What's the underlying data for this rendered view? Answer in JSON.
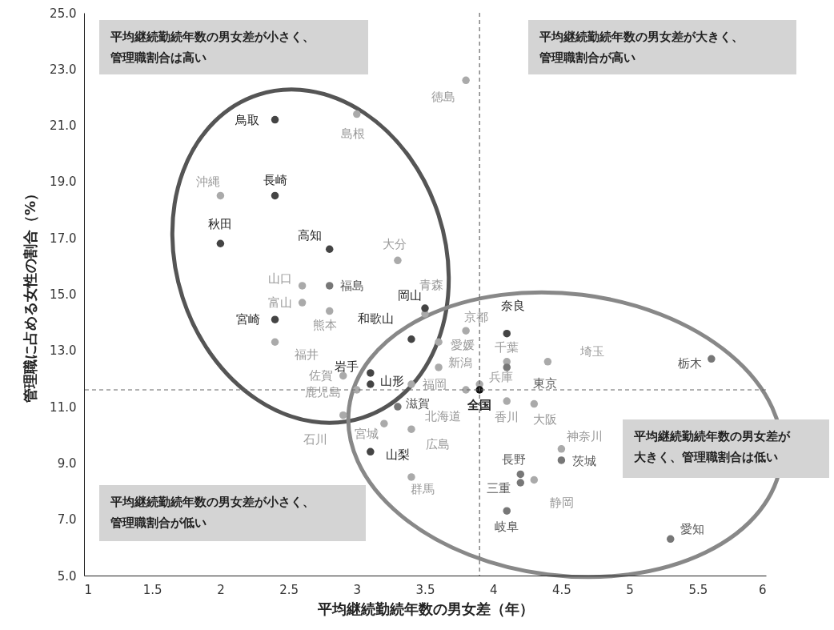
{
  "chart_data": {
    "type": "scatter",
    "xlabel": "平均継続勤続年数の男女差（年）",
    "ylabel": "管理職に占める女性の割合（%）",
    "xlim": [
      1,
      6
    ],
    "ylim": [
      5,
      25
    ],
    "xticks": [
      1,
      1.5,
      2,
      2.5,
      3,
      3.5,
      4,
      4.5,
      5,
      5.5,
      6
    ],
    "yticks": [
      {
        "value": 5,
        "label": "5.0"
      },
      {
        "value": 7,
        "label": "7.0"
      },
      {
        "value": 9,
        "label": "9.0"
      },
      {
        "value": 11,
        "label": "11.0"
      },
      {
        "value": 13,
        "label": "13.0"
      },
      {
        "value": 15,
        "label": "15.0"
      },
      {
        "value": 17,
        "label": "17.0"
      },
      {
        "value": 19,
        "label": "19.0"
      },
      {
        "value": 21,
        "label": "21.0"
      },
      {
        "value": 23,
        "label": "23.0"
      },
      {
        "value": 25,
        "label": "25.0"
      }
    ],
    "marker": "circle",
    "series": [
      {
        "color": "#aaaaaa",
        "x": [
          2.0,
          3.3,
          2.6,
          2.6,
          2.8,
          2.4,
          3.0,
          3.8,
          3.5,
          3.8,
          3.6,
          3.6,
          4.1,
          4.4,
          3.9,
          3.8,
          3.4,
          2.9,
          3.0,
          2.9,
          3.2,
          3.4,
          3.4,
          4.1,
          4.3,
          4.5,
          4.3
        ],
        "values": [
          18.5,
          16.2,
          15.3,
          14.7,
          14.4,
          13.3,
          21.4,
          22.6,
          14.3,
          13.7,
          13.3,
          12.4,
          12.6,
          12.6,
          11.8,
          11.6,
          11.8,
          12.1,
          11.6,
          10.7,
          10.4,
          10.2,
          8.5,
          11.2,
          11.1,
          9.5,
          8.4
        ]
      },
      {
        "color": "#777777",
        "x": [
          2.8,
          3.3,
          4.1,
          4.2,
          4.2,
          4.5,
          4.1,
          5.3,
          5.6
        ],
        "values": [
          15.3,
          11.0,
          12.4,
          8.6,
          8.3,
          9.1,
          7.3,
          6.3,
          12.7
        ]
      },
      {
        "color": "#444444",
        "x": [
          2.4,
          2.4,
          2.0,
          2.8,
          2.4,
          3.4,
          3.5,
          4.1,
          3.1,
          3.1,
          3.1
        ],
        "values": [
          21.2,
          18.5,
          16.8,
          16.6,
          14.1,
          13.4,
          14.5,
          13.6,
          12.2,
          11.8,
          9.4
        ]
      },
      {
        "color": "#111111",
        "x": [
          3.9
        ],
        "values": [
          11.6
        ]
      }
    ],
    "ref_lines": [
      {
        "axis": "x",
        "value": 3.9,
        "color": "#666666",
        "line_style": "dashed"
      },
      {
        "axis": "y",
        "value": 11.6,
        "color": "#666666",
        "line_style": "dashed"
      }
    ],
    "annotations": [
      "平均継続勤続年数の男女差が小さく、管理職割合は高い",
      "平均継続勤続年数の男女差が大きく、管理職割合が高い",
      "平均継続勤続年数の男女差が大きく、管理職割合は低い",
      "平均継続勤続年数の男女差が小さく、管理職割合が低い",
      {
        "text": "沖縄",
        "x": 2.0,
        "y": 18.5
      },
      {
        "text": "大分",
        "x": 3.3,
        "y": 16.2
      },
      {
        "text": "山口",
        "x": 2.6,
        "y": 15.3
      },
      {
        "text": "富山",
        "x": 2.6,
        "y": 14.7
      },
      {
        "text": "熊本",
        "x": 2.8,
        "y": 14.4
      },
      {
        "text": "福井",
        "x": 2.4,
        "y": 13.3
      },
      {
        "text": "島根",
        "x": 3.0,
        "y": 21.4
      },
      {
        "text": "徳島",
        "x": 3.8,
        "y": 22.6
      },
      {
        "text": "青森",
        "x": 3.5,
        "y": 14.3
      },
      {
        "text": "京都",
        "x": 3.8,
        "y": 13.7
      },
      {
        "text": "愛媛",
        "x": 3.6,
        "y": 13.3
      },
      {
        "text": "新潟",
        "x": 3.6,
        "y": 12.4
      },
      {
        "text": "千葉",
        "x": 4.1,
        "y": 12.6
      },
      {
        "text": "埼玉",
        "x": 4.4,
        "y": 12.6
      },
      {
        "text": "兵庫",
        "x": 3.9,
        "y": 11.8
      },
      {
        "text": "北海道",
        "x": 3.8,
        "y": 11.6
      },
      {
        "text": "福岡",
        "x": 3.4,
        "y": 11.8
      },
      {
        "text": "佐賀",
        "x": 2.9,
        "y": 12.1
      },
      {
        "text": "鹿児島",
        "x": 3.0,
        "y": 11.6
      },
      {
        "text": "石川",
        "x": 2.9,
        "y": 10.7
      },
      {
        "text": "宮城",
        "x": 3.2,
        "y": 10.4
      },
      {
        "text": "広島",
        "x": 3.4,
        "y": 10.2
      },
      {
        "text": "群馬",
        "x": 3.4,
        "y": 8.5
      },
      {
        "text": "香川",
        "x": 4.1,
        "y": 11.2
      },
      {
        "text": "大阪",
        "x": 4.3,
        "y": 11.1
      },
      {
        "text": "神奈川",
        "x": 4.5,
        "y": 9.5
      },
      {
        "text": "静岡",
        "x": 4.3,
        "y": 8.4
      },
      {
        "text": "福島",
        "x": 2.8,
        "y": 15.3
      },
      {
        "text": "滋賀",
        "x": 3.3,
        "y": 11.0
      },
      {
        "text": "東京",
        "x": 4.1,
        "y": 12.4
      },
      {
        "text": "長野",
        "x": 4.2,
        "y": 8.6
      },
      {
        "text": "三重",
        "x": 4.2,
        "y": 8.3
      },
      {
        "text": "茨城",
        "x": 4.5,
        "y": 9.1
      },
      {
        "text": "岐阜",
        "x": 4.1,
        "y": 7.3
      },
      {
        "text": "愛知",
        "x": 5.3,
        "y": 6.3
      },
      {
        "text": "栃木",
        "x": 5.6,
        "y": 12.7
      },
      {
        "text": "鳥取",
        "x": 2.4,
        "y": 21.2
      },
      {
        "text": "長崎",
        "x": 2.4,
        "y": 18.5
      },
      {
        "text": "秋田",
        "x": 2.0,
        "y": 16.8
      },
      {
        "text": "高知",
        "x": 2.8,
        "y": 16.6
      },
      {
        "text": "宮崎",
        "x": 2.4,
        "y": 14.1
      },
      {
        "text": "和歌山",
        "x": 3.4,
        "y": 13.4
      },
      {
        "text": "岡山",
        "x": 3.5,
        "y": 14.5
      },
      {
        "text": "奈良",
        "x": 4.1,
        "y": 13.6
      },
      {
        "text": "岩手",
        "x": 3.1,
        "y": 12.2
      },
      {
        "text": "山形",
        "x": 3.1,
        "y": 11.8
      },
      {
        "text": "山梨",
        "x": 3.1,
        "y": 9.4
      },
      {
        "text": "全国",
        "x": 3.9,
        "y": 11.6
      }
    ]
  }
}
